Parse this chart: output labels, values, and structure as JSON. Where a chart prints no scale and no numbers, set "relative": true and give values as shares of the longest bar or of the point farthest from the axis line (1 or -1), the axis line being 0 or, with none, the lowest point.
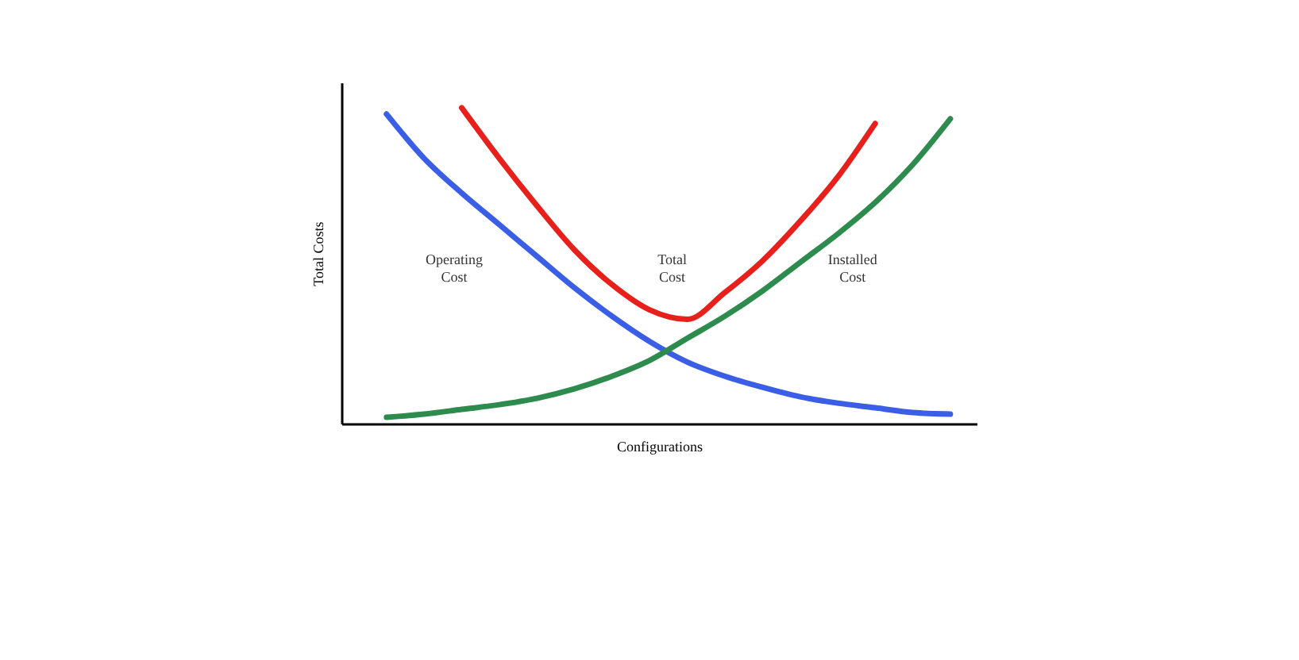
{
  "chart_data": {
    "type": "line",
    "relative": true,
    "xlabel": "Configurations",
    "ylabel": "Total Costs",
    "categories": [
      null,
      null,
      null,
      null,
      null,
      null,
      null,
      null,
      null,
      null,
      null,
      null,
      null,
      null,
      null,
      null
    ],
    "series": [
      {
        "name": "Operating Cost",
        "color": "#3a5ee6",
        "values": [
          0.98,
          0.84,
          0.73,
          0.63,
          0.53,
          0.43,
          0.34,
          0.26,
          0.195,
          0.15,
          0.115,
          0.085,
          0.065,
          0.05,
          0.035,
          0.03
        ]
      },
      {
        "name": "Total Cost",
        "color": "#e8201c",
        "values": [
          null,
          null,
          1.0,
          0.84,
          0.69,
          0.55,
          0.44,
          0.36,
          0.33,
          0.415,
          0.515,
          0.64,
          0.78,
          0.95,
          null,
          null
        ]
      },
      {
        "name": "Installed Cost",
        "color": "#2e8b4e",
        "values": [
          0.02,
          0.03,
          0.045,
          0.06,
          0.08,
          0.11,
          0.15,
          0.2,
          0.27,
          0.34,
          0.42,
          0.51,
          0.6,
          0.7,
          0.82,
          0.965
        ]
      }
    ],
    "marker": "none",
    "line_style": "solid"
  }
}
